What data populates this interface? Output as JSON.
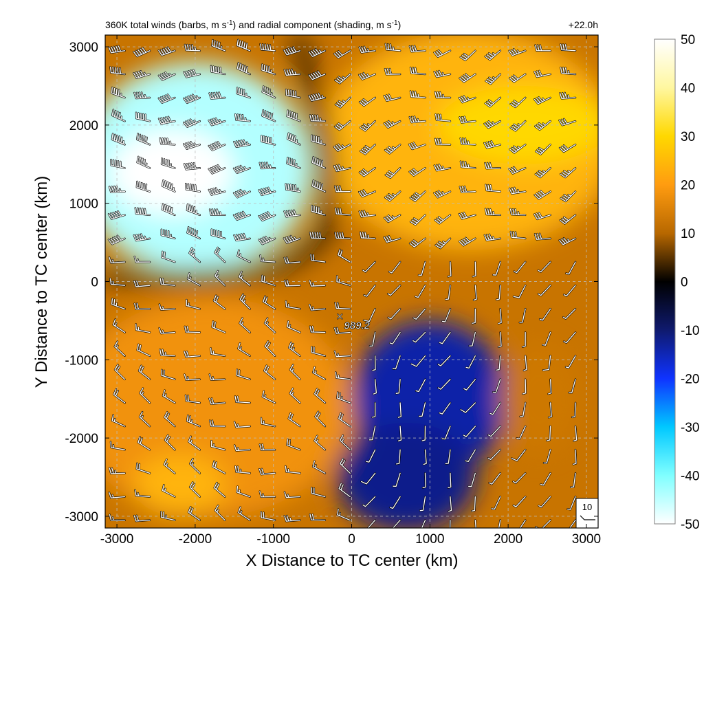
{
  "chart_data": {
    "type": "heatmap",
    "title_main": "360K total winds (barbs, m s",
    "title_sup1": "-1",
    "title_mid": ") and radial component (shading, m s",
    "title_sup2": "-1",
    "title_end": ")",
    "lead_time": "+22.0h",
    "xlabel": "X Distance to TC center (km)",
    "ylabel": "Y Distance to TC center (km)",
    "xlim": [
      -3150,
      3150
    ],
    "ylim": [
      -3150,
      3150
    ],
    "x_ticks": [
      -3000,
      -2000,
      -1000,
      0,
      1000,
      2000,
      3000
    ],
    "y_ticks": [
      -3000,
      -2000,
      -1000,
      0,
      1000,
      2000,
      3000
    ],
    "grid": true,
    "center_marker": "×",
    "center_pressure": "989.2",
    "center_xy": [
      -150,
      -450
    ],
    "reference_barb_label": "10",
    "colorbar": {
      "ticks": [
        50,
        40,
        30,
        20,
        10,
        0,
        -10,
        -20,
        -30,
        -40,
        -50
      ],
      "range": [
        -50,
        50
      ],
      "stops": [
        {
          "value": 50,
          "color": "#ffffff"
        },
        {
          "value": 40,
          "color": "#fff7a0"
        },
        {
          "value": 30,
          "color": "#ffd800"
        },
        {
          "value": 20,
          "color": "#ff9c10"
        },
        {
          "value": 10,
          "color": "#b86800"
        },
        {
          "value": 0,
          "color": "#000000"
        },
        {
          "value": -10,
          "color": "#0f1a6e"
        },
        {
          "value": -20,
          "color": "#0f33ff"
        },
        {
          "value": -30,
          "color": "#00c8ff"
        },
        {
          "value": -40,
          "color": "#80ffff"
        },
        {
          "value": -50,
          "color": "#ffffff"
        }
      ]
    },
    "shading_blobs": [
      {
        "x": -2000,
        "y": 1450,
        "rx": 1500,
        "ry": 1350,
        "value": -44
      },
      {
        "x": -2300,
        "y": 1400,
        "rx": 800,
        "ry": 550,
        "value": -50
      },
      {
        "x": 1500,
        "y": 1800,
        "rx": 1900,
        "ry": 1400,
        "value": 24
      },
      {
        "x": 2200,
        "y": 2000,
        "rx": 1100,
        "ry": 500,
        "value": 30
      },
      {
        "x": -1800,
        "y": -1600,
        "rx": 1800,
        "ry": 1400,
        "value": 18
      },
      {
        "x": 1000,
        "y": -1500,
        "rx": 1000,
        "ry": 1000,
        "value": -14
      },
      {
        "x": 2400,
        "y": -1500,
        "rx": 500,
        "ry": 700,
        "value": 13
      },
      {
        "x": 700,
        "y": -2500,
        "rx": 900,
        "ry": 700,
        "value": -12
      },
      {
        "x": -2200,
        "y": -2600,
        "rx": 600,
        "ry": 400,
        "value": 24
      }
    ],
    "barbs": {
      "grid_x_start": -2900,
      "grid_x_step": 320,
      "grid_y_start": 2950,
      "grid_y_step": -300,
      "regions": [
        {
          "name": "northwest jet",
          "direction_deg": 270,
          "speed_ms": 55
        },
        {
          "name": "northeast outflow",
          "direction_deg": 250,
          "speed_ms": 40
        },
        {
          "name": "southwest",
          "direction_deg": 290,
          "speed_ms": 25
        },
        {
          "name": "southeast",
          "direction_deg": 200,
          "speed_ms": 10
        }
      ]
    }
  }
}
